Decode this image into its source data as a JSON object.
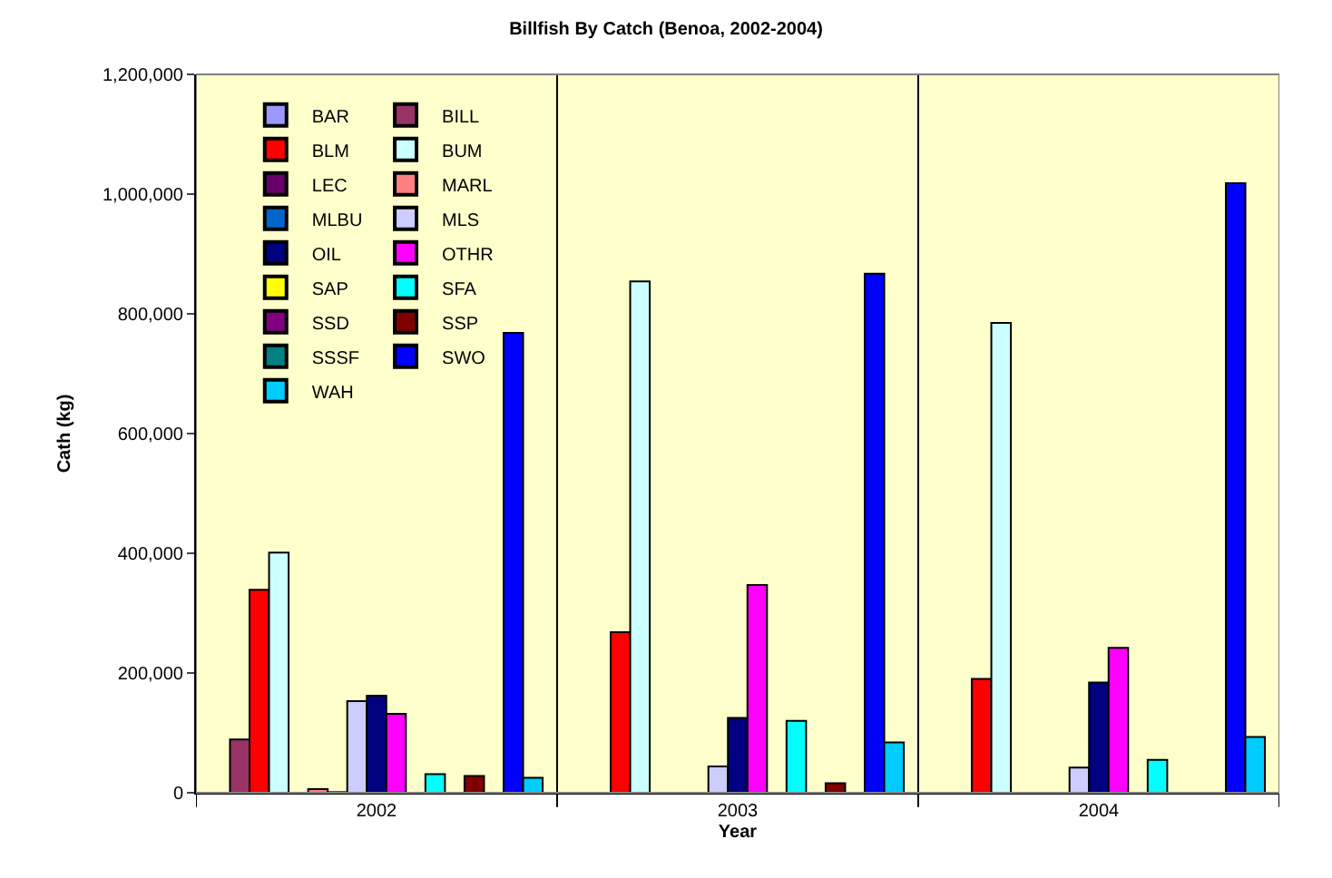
{
  "chart_data": {
    "type": "bar",
    "title": "Billfish By Catch (Benoa, 2002-2004)",
    "xlabel": "Year",
    "ylabel": "Cath (kg)",
    "categories": [
      "2002",
      "2003",
      "2004"
    ],
    "series": [
      {
        "name": "BAR",
        "color": "#9999ff",
        "values": [
          null,
          null,
          null
        ]
      },
      {
        "name": "BILL",
        "color": "#993366",
        "values": [
          89000,
          null,
          null
        ]
      },
      {
        "name": "BLM",
        "color": "#ff0000",
        "values": [
          339000,
          268000,
          190000
        ]
      },
      {
        "name": "BUM",
        "color": "#ccffff",
        "values": [
          401000,
          854000,
          785000
        ]
      },
      {
        "name": "LEC",
        "color": "#660066",
        "values": [
          null,
          null,
          null
        ]
      },
      {
        "name": "MARL",
        "color": "#ff8080",
        "values": [
          6000,
          null,
          null
        ]
      },
      {
        "name": "MLBU",
        "color": "#0066cc",
        "values": [
          1000,
          null,
          null
        ]
      },
      {
        "name": "MLS",
        "color": "#ccccff",
        "values": [
          153000,
          44000,
          42000
        ]
      },
      {
        "name": "OIL",
        "color": "#000080",
        "values": [
          162000,
          125000,
          184000
        ]
      },
      {
        "name": "OTHR",
        "color": "#ff00ff",
        "values": [
          132000,
          347000,
          242000
        ]
      },
      {
        "name": "SAP",
        "color": "#ffff00",
        "values": [
          null,
          null,
          null
        ]
      },
      {
        "name": "SFA",
        "color": "#00ffff",
        "values": [
          31000,
          120000,
          55000
        ]
      },
      {
        "name": "SSD",
        "color": "#800080",
        "values": [
          null,
          null,
          null
        ]
      },
      {
        "name": "SSP",
        "color": "#800000",
        "values": [
          28000,
          16000,
          null
        ]
      },
      {
        "name": "SSSF",
        "color": "#008080",
        "values": [
          null,
          null,
          null
        ]
      },
      {
        "name": "SWO",
        "color": "#0000ff",
        "values": [
          768000,
          867000,
          1018000
        ]
      },
      {
        "name": "WAH",
        "color": "#00ccff",
        "values": [
          25000,
          84000,
          93000
        ]
      }
    ],
    "ylim": [
      0,
      1200000
    ],
    "yticks": [
      {
        "value": 0,
        "label": "0"
      },
      {
        "value": 200000,
        "label": "200,000"
      },
      {
        "value": 400000,
        "label": "400,000"
      },
      {
        "value": 600000,
        "label": "600,000"
      },
      {
        "value": 800000,
        "label": "800,000"
      },
      {
        "value": 1000000,
        "label": "1,000,000"
      },
      {
        "value": 1200000,
        "label": "1,200,000"
      }
    ],
    "grid": "x",
    "legend": "top left"
  }
}
